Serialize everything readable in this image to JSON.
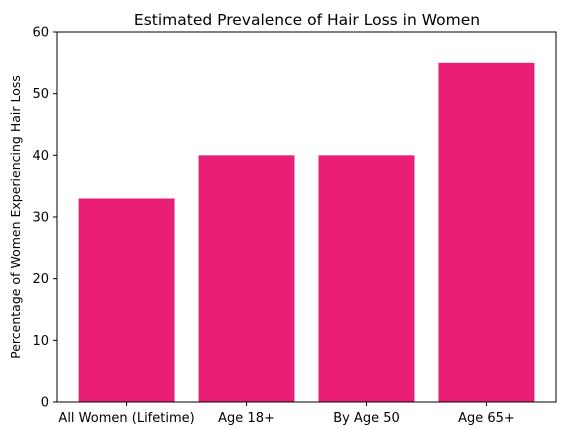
{
  "chart_data": {
    "type": "bar",
    "title": "Estimated Prevalence of Hair Loss in Women",
    "xlabel": "",
    "ylabel": "Percentage of Women Experiencing Hair Loss",
    "categories": [
      "All Women (Lifetime)",
      "Age 18+",
      "By Age 50",
      "Age 65+"
    ],
    "values": [
      33,
      40,
      40,
      55
    ],
    "ylim": [
      0,
      60
    ],
    "yticks": [
      0,
      10,
      20,
      30,
      40,
      50,
      60
    ],
    "bar_color": "#e91e77",
    "grid": false,
    "legend": "none"
  }
}
